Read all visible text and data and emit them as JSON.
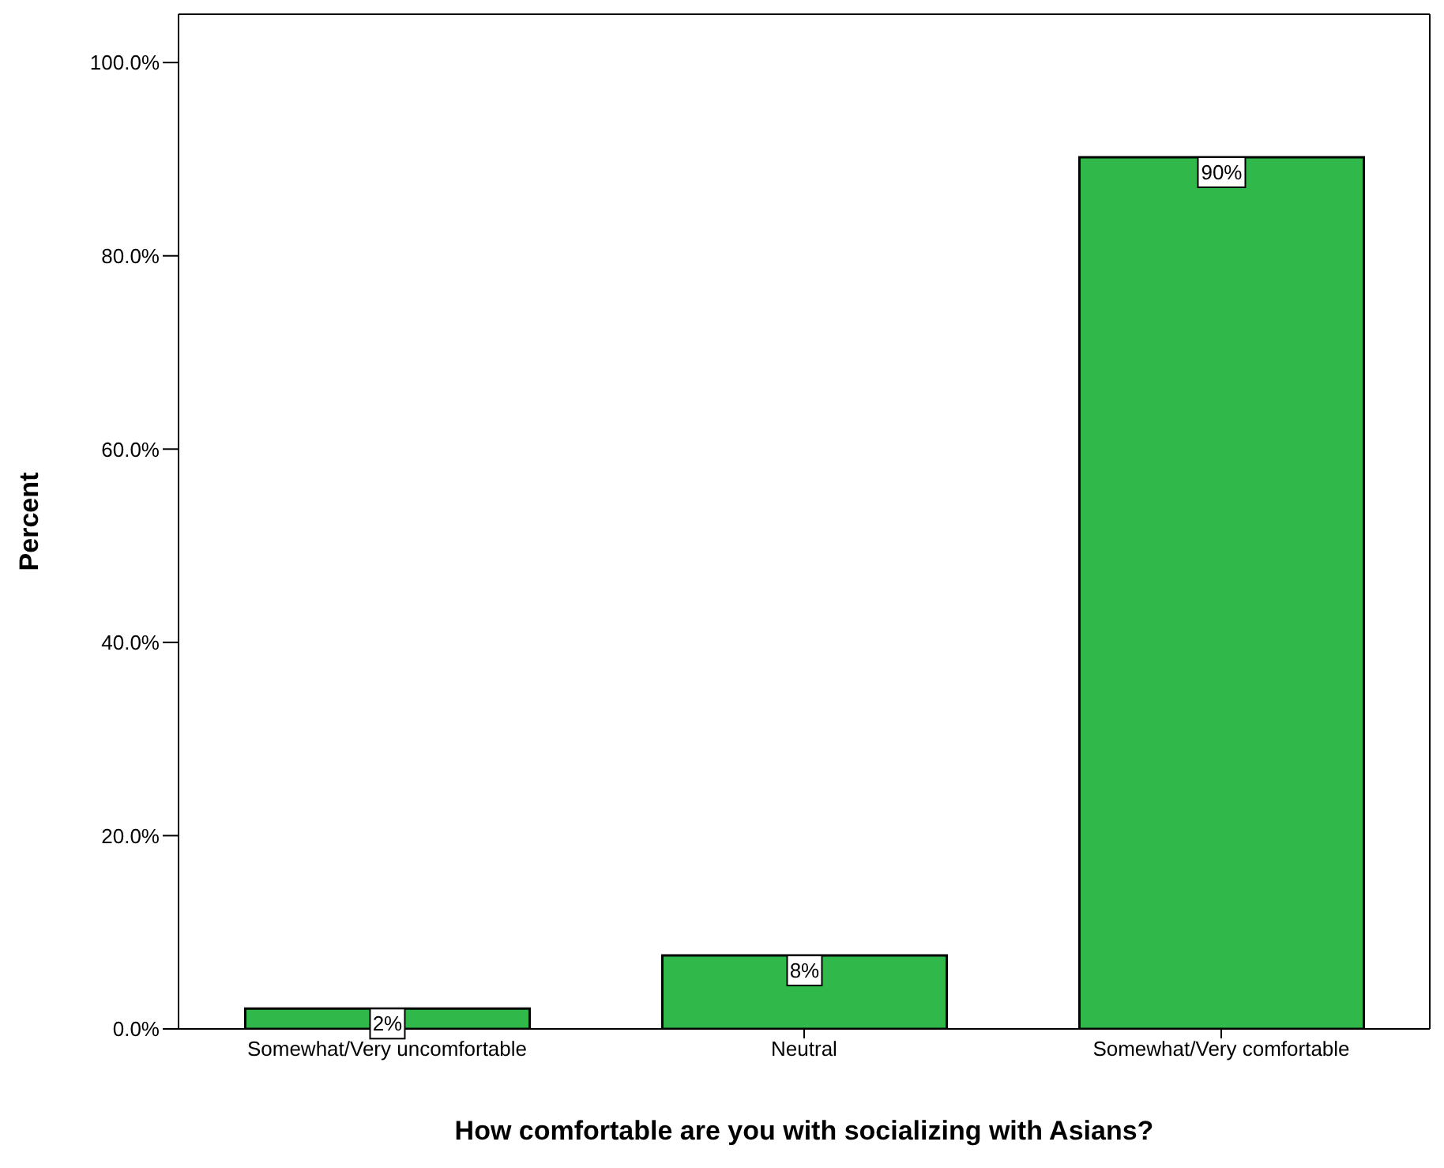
{
  "chart_data": {
    "type": "bar",
    "xlabel": "How comfortable are you with socializing with Asians?",
    "ylabel": "Percent",
    "categories": [
      "Somewhat/Very uncomfortable",
      "Neutral",
      "Somewhat/Very comfortable"
    ],
    "values": [
      2.1,
      7.6,
      90.2
    ],
    "value_labels": [
      "2%",
      "8%",
      "90%"
    ],
    "color": "#30b84a",
    "ylim": [
      0,
      105
    ],
    "yticks": [
      {
        "value": 0,
        "label": "0.0%"
      },
      {
        "value": 20,
        "label": "20.0%"
      },
      {
        "value": 40,
        "label": "40.0%"
      },
      {
        "value": 60,
        "label": "60.0%"
      },
      {
        "value": 80,
        "label": "80.0%"
      },
      {
        "value": 100,
        "label": "100.0%"
      }
    ],
    "grid": false,
    "legend": false
  }
}
